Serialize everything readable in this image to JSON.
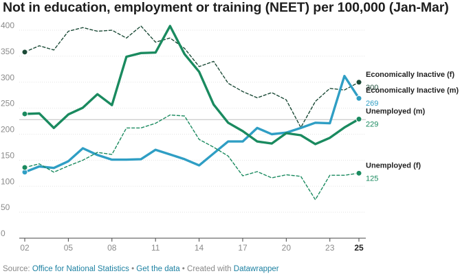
{
  "title": "Not in education, employment or training (NEET) per 100,000 (Jan-Mar)",
  "footer": {
    "source_label": "Source: ",
    "source_link": "Office for National Statistics",
    "sep1": " • ",
    "data_link": "Get the data",
    "sep2": " • Created with ",
    "tool_link": "Datawrapper"
  },
  "chart_data": {
    "type": "line",
    "title": "Not in education, employment or training (NEET) per 100,000 (Jan-Mar)",
    "xlabel": "",
    "ylabel": "",
    "x": [
      2,
      3,
      4,
      5,
      6,
      7,
      8,
      9,
      10,
      11,
      12,
      13,
      14,
      15,
      16,
      17,
      18,
      19,
      20,
      21,
      22,
      23,
      24,
      25
    ],
    "xticks": [
      {
        "value": 2,
        "label": "02",
        "bold": false
      },
      {
        "value": 5,
        "label": "05",
        "bold": false
      },
      {
        "value": 8,
        "label": "08",
        "bold": false
      },
      {
        "value": 11,
        "label": "11",
        "bold": false
      },
      {
        "value": 14,
        "label": "14",
        "bold": false
      },
      {
        "value": 17,
        "label": "17",
        "bold": false
      },
      {
        "value": 20,
        "label": "20",
        "bold": false
      },
      {
        "value": 23,
        "label": "23",
        "bold": false
      },
      {
        "value": 25,
        "label": "25",
        "bold": true
      }
    ],
    "yticks": [
      0,
      50,
      100,
      150,
      200,
      250,
      300,
      350,
      400
    ],
    "ylim": [
      0,
      400
    ],
    "xlim": [
      2,
      25
    ],
    "reference_line": 228,
    "series": [
      {
        "name": "Economically Inactive (f)",
        "color": "#1b4a36",
        "style": "dashed",
        "label": "Economically Inactive (f)",
        "end_value_label": "300",
        "values": [
          358,
          370,
          362,
          398,
          405,
          398,
          400,
          385,
          408,
          377,
          385,
          365,
          330,
          340,
          298,
          282,
          270,
          280,
          266,
          213,
          263,
          288,
          285,
          300
        ]
      },
      {
        "name": "Economically Inactive (m)",
        "color": "#2f9ec4",
        "style": "solid",
        "label": "Economically Inactive (m)",
        "end_value_label": "269",
        "values": [
          127,
          138,
          135,
          148,
          173,
          160,
          151,
          151,
          152,
          170,
          161,
          152,
          140,
          163,
          186,
          186,
          212,
          200,
          203,
          212,
          222,
          221,
          312,
          269
        ]
      },
      {
        "name": "Unemployed (m)",
        "color": "#1a8a5f",
        "style": "solid",
        "label": "Unemployed (m)",
        "end_value_label": "229",
        "values": [
          239,
          240,
          212,
          238,
          251,
          277,
          256,
          349,
          356,
          357,
          408,
          354,
          320,
          257,
          222,
          206,
          186,
          182,
          202,
          198,
          181,
          193,
          213,
          229
        ]
      },
      {
        "name": "Unemployed  (f)",
        "color": "#1a8a5f",
        "style": "dashed",
        "label": "Unemployed  (f)",
        "end_value_label": "125",
        "values": [
          136,
          143,
          127,
          139,
          150,
          165,
          161,
          212,
          212,
          221,
          237,
          235,
          190,
          175,
          158,
          120,
          128,
          116,
          122,
          119,
          74,
          121,
          121,
          125
        ]
      }
    ]
  }
}
